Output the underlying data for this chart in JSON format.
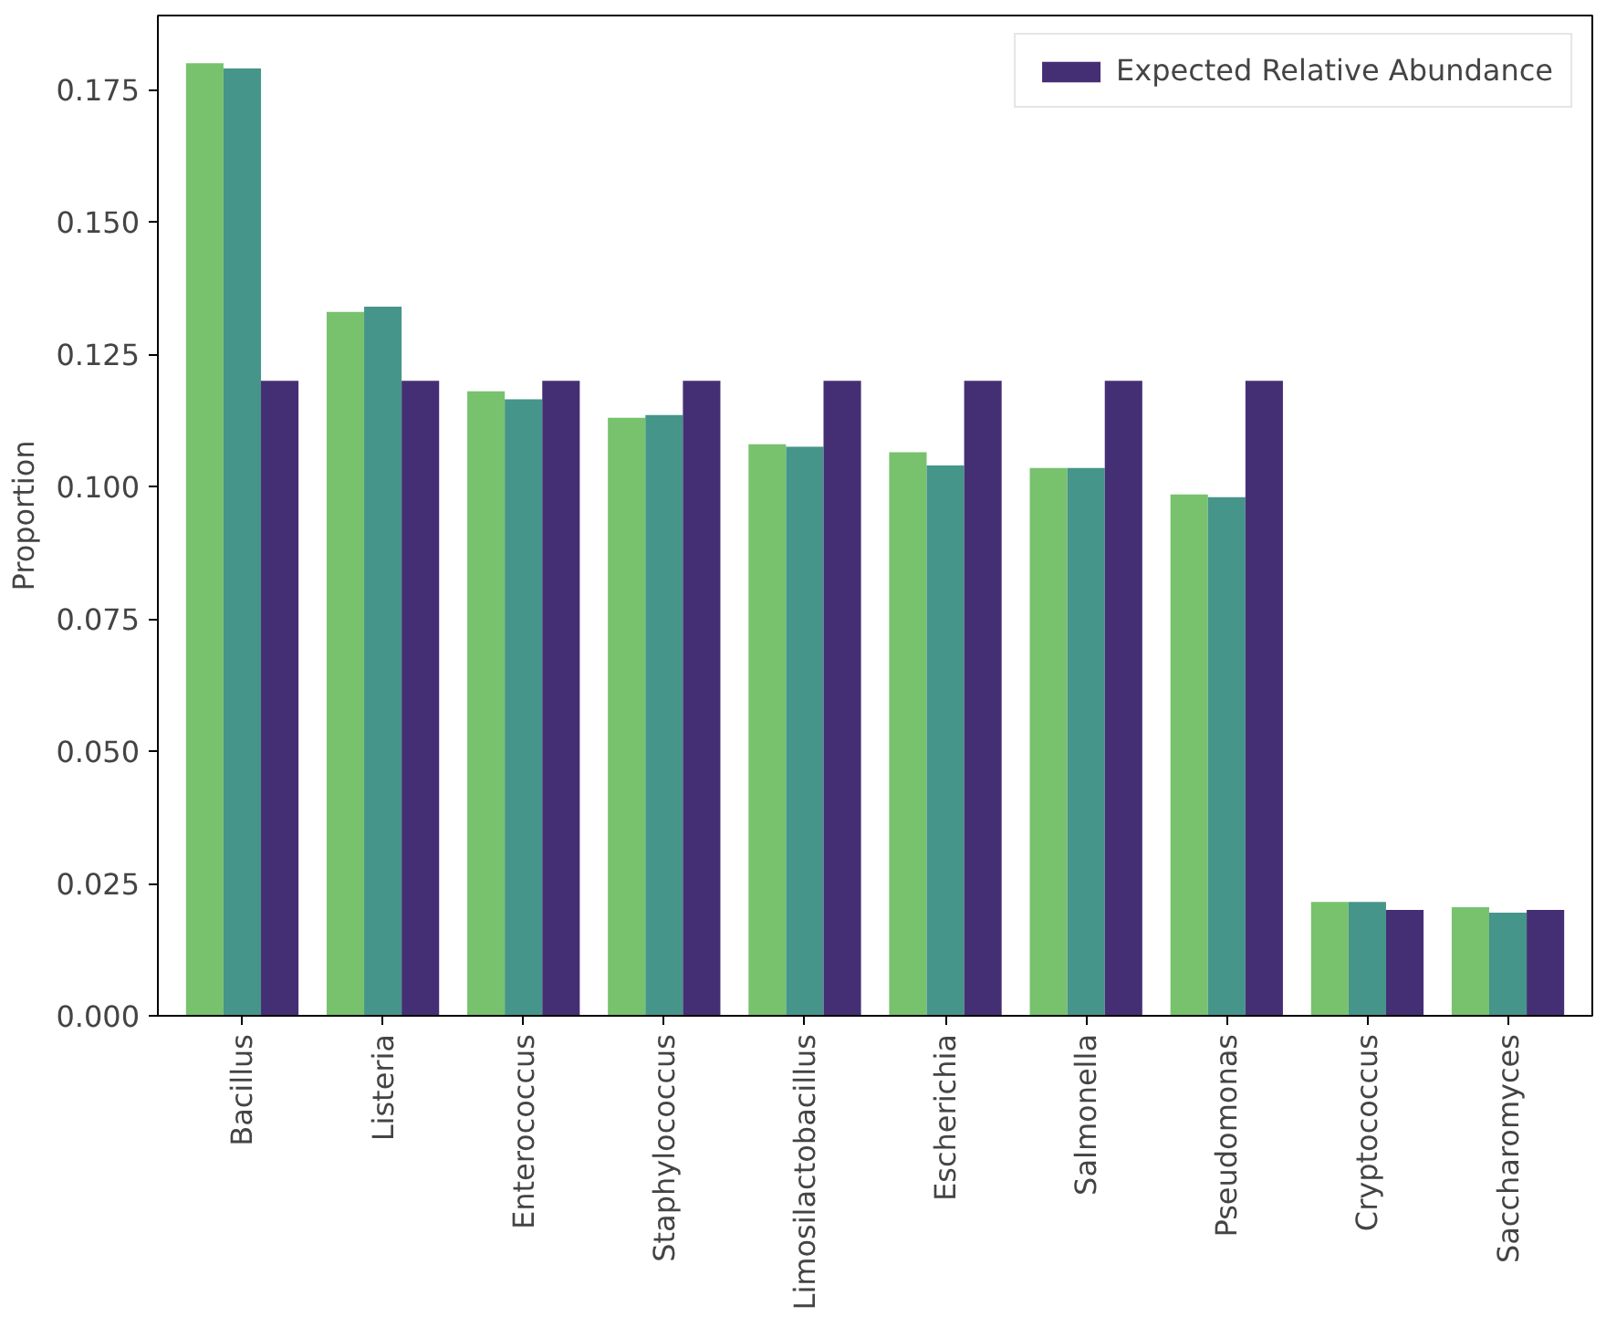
{
  "chart_data": {
    "type": "bar",
    "ylabel": "Proportion",
    "categories": [
      "Bacillus",
      "Listeria",
      "Enterococcus",
      "Staphylococcus",
      "Limosilactobacillus",
      "Escherichia",
      "Salmonella",
      "Pseudomonas",
      "Cryptococcus",
      "Saccharomyces"
    ],
    "series": [
      {
        "color": "#78c26e",
        "values": [
          0.18,
          0.133,
          0.118,
          0.113,
          0.108,
          0.1065,
          0.1035,
          0.0985,
          0.0215,
          0.0205
        ]
      },
      {
        "color": "#46958a",
        "values": [
          0.179,
          0.134,
          0.1165,
          0.1135,
          0.1075,
          0.104,
          0.1035,
          0.098,
          0.0215,
          0.0195
        ]
      },
      {
        "name": "Expected Relative Abundance",
        "color": "#452f74",
        "values": [
          0.12,
          0.12,
          0.12,
          0.12,
          0.12,
          0.12,
          0.12,
          0.12,
          0.02,
          0.02
        ]
      }
    ],
    "ylim": [
      0,
      0.189
    ],
    "yticks": [
      {
        "value": 0,
        "label": "0.000"
      },
      {
        "value": 0.025,
        "label": "0.025"
      },
      {
        "value": 0.05,
        "label": "0.050"
      },
      {
        "value": 0.075,
        "label": "0.075"
      },
      {
        "value": 0.1,
        "label": "0.100"
      },
      {
        "value": 0.125,
        "label": "0.125"
      },
      {
        "value": 0.15,
        "label": "0.150"
      },
      {
        "value": 0.175,
        "label": "0.175"
      }
    ],
    "grid": false,
    "legend": "top right"
  }
}
